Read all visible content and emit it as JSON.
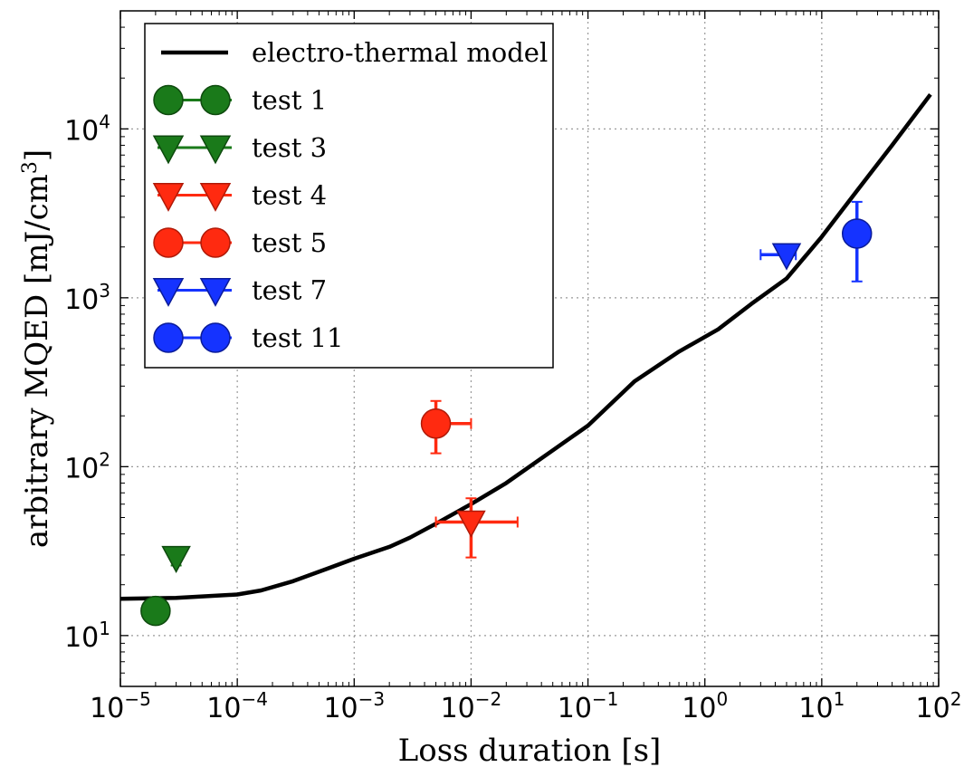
{
  "chart_data": {
    "type": "scatter",
    "xscale": "log",
    "yscale": "log",
    "xlim": [
      1e-05,
      100
    ],
    "ylim": [
      5,
      50000
    ],
    "xlabel": "Loss duration [s]",
    "ylabel_main": "arbitrary MQED [mJ/cm",
    "ylabel_sup": "3",
    "ylabel_end": "]",
    "x_ticks": [
      {
        "base": "10",
        "exp": "−5",
        "value": 1e-05
      },
      {
        "base": "10",
        "exp": "−4",
        "value": 0.0001
      },
      {
        "base": "10",
        "exp": "−3",
        "value": 0.001
      },
      {
        "base": "10",
        "exp": "−2",
        "value": 0.01
      },
      {
        "base": "10",
        "exp": "−1",
        "value": 0.1
      },
      {
        "base": "10",
        "exp": "0",
        "value": 1
      },
      {
        "base": "10",
        "exp": "1",
        "value": 10
      },
      {
        "base": "10",
        "exp": "2",
        "value": 100
      }
    ],
    "y_ticks": [
      {
        "base": "10",
        "exp": "1",
        "value": 10
      },
      {
        "base": "10",
        "exp": "2",
        "value": 100
      },
      {
        "base": "10",
        "exp": "3",
        "value": 1000
      },
      {
        "base": "10",
        "exp": "4",
        "value": 10000
      }
    ],
    "grid": true,
    "legend_position": "top-left",
    "series": [
      {
        "name": "electro-thermal model",
        "kind": "line",
        "color": "#000000",
        "x": [
          1e-05,
          3e-05,
          0.0001,
          0.00016,
          0.0003,
          0.0006,
          0.001,
          0.002,
          0.003,
          0.005,
          0.01,
          0.02,
          0.05,
          0.1,
          0.25,
          0.6,
          1.3,
          2.5,
          5,
          10,
          20,
          40,
          85
        ],
        "y": [
          16.5,
          16.7,
          17.5,
          18.5,
          21,
          25,
          28.5,
          33.5,
          38,
          46,
          60,
          80,
          125,
          175,
          320,
          480,
          650,
          920,
          1300,
          2300,
          4300,
          8000,
          16000
        ]
      },
      {
        "name": "test 1",
        "marker": "circle",
        "color": "#1a7a1a",
        "edge": "#0e4a0e",
        "x": 2e-05,
        "y": 14,
        "xerr": [
          2e-05,
          2e-05
        ],
        "yerr": [
          13,
          15
        ]
      },
      {
        "name": "test 3",
        "marker": "triangle-down",
        "color": "#1a7a1a",
        "edge": "#0e4a0e",
        "x": 3e-05,
        "y": 29,
        "xerr": [
          3e-05,
          3e-05
        ],
        "yerr": [
          26,
          31
        ]
      },
      {
        "name": "test 4",
        "marker": "triangle-down",
        "color": "#ff2a10",
        "edge": "#b01a08",
        "x": 0.01,
        "y": 47,
        "xerr": [
          0.005,
          0.025
        ],
        "yerr": [
          29,
          65
        ]
      },
      {
        "name": "test 5",
        "marker": "circle",
        "color": "#ff2a10",
        "edge": "#b01a08",
        "x": 0.005,
        "y": 180,
        "xerr": [
          0.005,
          0.01
        ],
        "yerr": [
          120,
          245
        ]
      },
      {
        "name": "test 7",
        "marker": "triangle-down",
        "color": "#1533ff",
        "edge": "#0a1b99",
        "x": 5,
        "y": 1800,
        "xerr": [
          3,
          6
        ],
        "yerr": [
          1750,
          1850
        ]
      },
      {
        "name": "test 11",
        "marker": "circle",
        "color": "#1533ff",
        "edge": "#0a1b99",
        "x": 20,
        "y": 2400,
        "xerr": [
          20,
          20
        ],
        "yerr": [
          1250,
          3700
        ]
      }
    ]
  }
}
